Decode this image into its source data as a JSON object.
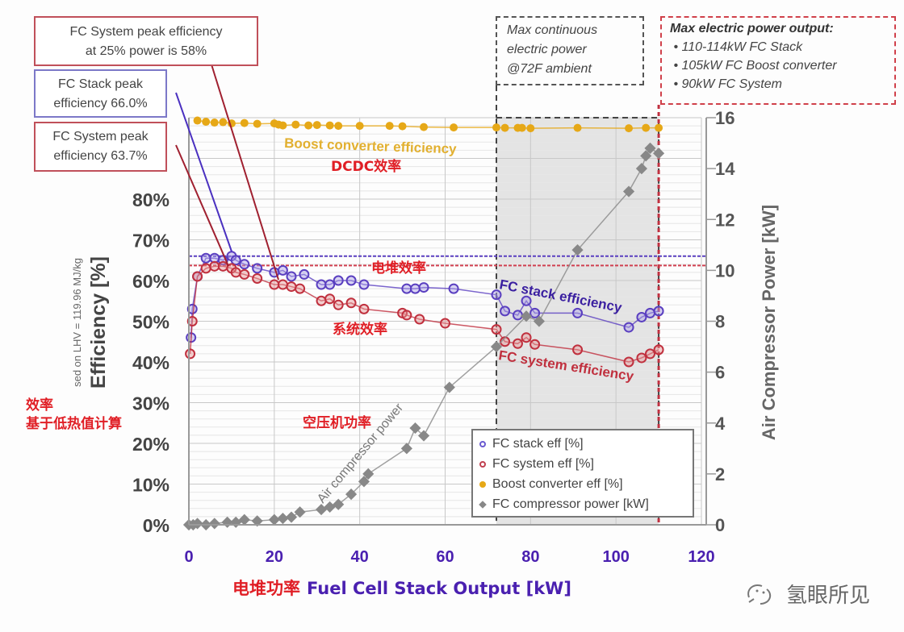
{
  "chart_data": {
    "type": "scatter",
    "xlabel_cn": "电堆功率",
    "xlabel": "Fuel Cell Stack Output [kW]",
    "ylabel": "Efficiency [%]",
    "ylabel_sub": "sed on LHV = 119.96 MJ/kg",
    "y2label": "Air Compressor Power [kW]",
    "xlim": [
      0,
      120
    ],
    "ylim": [
      0,
      100
    ],
    "y2lim": [
      0,
      16
    ],
    "xticks": [
      "0",
      "20",
      "40",
      "60",
      "80",
      "100",
      "120"
    ],
    "yticks": [
      "0%",
      "10%",
      "20%",
      "30%",
      "40%",
      "50%",
      "60%",
      "70%",
      "80%"
    ],
    "y2ticks": [
      "0",
      "2",
      "4",
      "6",
      "8",
      "10",
      "12",
      "14",
      "16"
    ],
    "grid": true,
    "legend_position": "bottom-right",
    "legend": [
      "FC stack eff [%]",
      "FC system eff [%]",
      "Boost converter eff [%]",
      "FC compressor power [kW]"
    ],
    "reference_lines": [
      {
        "name": "stack-peak",
        "y": 66.0,
        "color": "#5a3fc0"
      },
      {
        "name": "system-peak",
        "y": 63.7,
        "color": "#d04050"
      }
    ],
    "shaded_region": {
      "x": [
        72,
        110
      ]
    },
    "max_line_x": 110,
    "series": [
      {
        "name": "FC stack eff [%]",
        "axis": "left",
        "color": "#5a3fc0",
        "points": [
          [
            0.5,
            46
          ],
          [
            0.8,
            53
          ],
          [
            2,
            61
          ],
          [
            4,
            65.5
          ],
          [
            6,
            65.5
          ],
          [
            8,
            65
          ],
          [
            10,
            66
          ],
          [
            11,
            65
          ],
          [
            13,
            64
          ],
          [
            16,
            63
          ],
          [
            20,
            62
          ],
          [
            22,
            62.5
          ],
          [
            24,
            61
          ],
          [
            27,
            61.5
          ],
          [
            31,
            59
          ],
          [
            33,
            59
          ],
          [
            35,
            60
          ],
          [
            38,
            60
          ],
          [
            41,
            59
          ],
          [
            51,
            58
          ],
          [
            53,
            58
          ],
          [
            55,
            58.3
          ],
          [
            62,
            58
          ],
          [
            72,
            56.5
          ],
          [
            74,
            52.5
          ],
          [
            77,
            51.5
          ],
          [
            79,
            55
          ],
          [
            81,
            52
          ],
          [
            91,
            52
          ],
          [
            103,
            48.5
          ],
          [
            106,
            51
          ],
          [
            108,
            52
          ],
          [
            110,
            52.5
          ]
        ]
      },
      {
        "name": "FC system eff [%]",
        "axis": "left",
        "color": "#c0303e",
        "points": [
          [
            0.3,
            42
          ],
          [
            0.8,
            50
          ],
          [
            2,
            61
          ],
          [
            4,
            63
          ],
          [
            6,
            63.5
          ],
          [
            8,
            63.5
          ],
          [
            10,
            63
          ],
          [
            11,
            62
          ],
          [
            13,
            61.5
          ],
          [
            16,
            60.5
          ],
          [
            20,
            59
          ],
          [
            22,
            59
          ],
          [
            24,
            58.5
          ],
          [
            26,
            58
          ],
          [
            31,
            55
          ],
          [
            33,
            55.5
          ],
          [
            35,
            54
          ],
          [
            38,
            54.5
          ],
          [
            41,
            53
          ],
          [
            50,
            52
          ],
          [
            51,
            51.5
          ],
          [
            54,
            50.5
          ],
          [
            60,
            49.5
          ],
          [
            72,
            48
          ],
          [
            74,
            45
          ],
          [
            77,
            44.5
          ],
          [
            79,
            46
          ],
          [
            81,
            44.3
          ],
          [
            91,
            43
          ],
          [
            103,
            40
          ],
          [
            106,
            41
          ],
          [
            108,
            42
          ],
          [
            110,
            43
          ]
        ]
      },
      {
        "name": "Boost converter eff [%]",
        "axis": "left",
        "color": "#e6a817",
        "points": [
          [
            2,
            99.3
          ],
          [
            4,
            99
          ],
          [
            6,
            98.8
          ],
          [
            8,
            98.9
          ],
          [
            10,
            98.6
          ],
          [
            13,
            98.7
          ],
          [
            16,
            98.5
          ],
          [
            20,
            98.6
          ],
          [
            21,
            98.3
          ],
          [
            22,
            98.1
          ],
          [
            25,
            98.3
          ],
          [
            28,
            98.1
          ],
          [
            30,
            98.2
          ],
          [
            33,
            98.1
          ],
          [
            35,
            98
          ],
          [
            40,
            98
          ],
          [
            47,
            98
          ],
          [
            50,
            97.9
          ],
          [
            55,
            97.7
          ],
          [
            62,
            97.6
          ],
          [
            72,
            97.6
          ],
          [
            74,
            97.5
          ],
          [
            77,
            97.5
          ],
          [
            78,
            97.5
          ],
          [
            80,
            97.4
          ],
          [
            91,
            97.5
          ],
          [
            103,
            97.4
          ],
          [
            107,
            97.5
          ],
          [
            110,
            97.5
          ]
        ]
      },
      {
        "name": "FC compressor power [kW]",
        "axis": "right",
        "color": "#888888",
        "points": [
          [
            0,
            0
          ],
          [
            1,
            0
          ],
          [
            2,
            0.05
          ],
          [
            4,
            0
          ],
          [
            6,
            0.05
          ],
          [
            9,
            0.1
          ],
          [
            11,
            0.1
          ],
          [
            13,
            0.2
          ],
          [
            16,
            0.15
          ],
          [
            20,
            0.2
          ],
          [
            22,
            0.25
          ],
          [
            24,
            0.3
          ],
          [
            26,
            0.5
          ],
          [
            31,
            0.6
          ],
          [
            33,
            0.7
          ],
          [
            35,
            0.8
          ],
          [
            38,
            1.2
          ],
          [
            41,
            1.7
          ],
          [
            42,
            2.0
          ],
          [
            51,
            3.0
          ],
          [
            53,
            3.8
          ],
          [
            55,
            3.5
          ],
          [
            61,
            5.4
          ],
          [
            72,
            7.0
          ],
          [
            79,
            8.2
          ],
          [
            82,
            8.0
          ],
          [
            91,
            10.8
          ],
          [
            103,
            13.1
          ],
          [
            106,
            14
          ],
          [
            107,
            14.5
          ],
          [
            108,
            14.8
          ],
          [
            110,
            14.6
          ]
        ]
      }
    ],
    "annotations": {
      "system_peak_25": [
        "FC System peak efficiency",
        "at 25% power is 58%"
      ],
      "stack_peak": [
        "FC Stack peak",
        "efficiency 66.0%"
      ],
      "system_peak": [
        "FC System peak",
        "efficiency 63.7%"
      ],
      "max_continuous": [
        "Max continuous",
        "electric power",
        "@72F ambient"
      ],
      "max_output_title": "Max electric power output:",
      "max_output_items": [
        "110-114kW FC Stack",
        "105kW FC Boost converter",
        "90kW FC System"
      ],
      "boost_label": "Boost converter efficiency",
      "dcdc_cn": "DCDC效率",
      "stack_cn": "电堆效率",
      "stack_label": "FC stack efficiency",
      "system_cn": "系统效率",
      "system_label": "FC system efficiency",
      "compressor_cn": "空压机功率",
      "compressor_label": "Air compressor power",
      "efficiency_cn": "效率",
      "lhv_cn": "基于低热值计算"
    }
  },
  "watermark": "氢眼所见"
}
